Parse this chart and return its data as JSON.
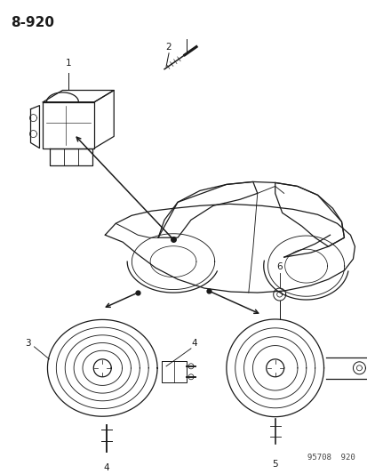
{
  "title_code": "8-920",
  "watermark": "95708  920",
  "bg_color": "#ffffff",
  "line_color": "#1a1a1a",
  "text_color": "#1a1a1a",
  "fig_width": 4.14,
  "fig_height": 5.33,
  "dpi": 100
}
